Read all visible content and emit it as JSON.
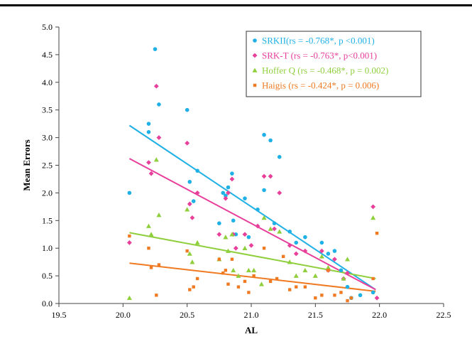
{
  "chart_data": {
    "type": "scatter",
    "title": "",
    "xlabel": "AL",
    "ylabel": "Mean Errors",
    "xlim": [
      19.5,
      22.5
    ],
    "ylim": [
      0.0,
      5.0
    ],
    "x_ticks": [
      "19.5",
      "20.0",
      "20.5",
      "21.0",
      "21.5",
      "22.0",
      "22.5"
    ],
    "y_ticks": [
      "0.0",
      "0.5",
      "1.0",
      "1.5",
      "2.0",
      "2.5",
      "3.0",
      "3.5",
      "4.0",
      "4.5",
      "5.0"
    ],
    "grid": false,
    "legend_position": "top-right",
    "series": [
      {
        "name": "SRKII(rs = -0.768*, p <0.001)",
        "color": "#1fb0e6",
        "marker": "circle",
        "trendline": [
          [
            20.05,
            3.22
          ],
          [
            21.97,
            0.25
          ]
        ],
        "points": [
          [
            20.05,
            2.0
          ],
          [
            20.2,
            3.25
          ],
          [
            20.2,
            3.1
          ],
          [
            20.25,
            4.6
          ],
          [
            20.28,
            3.6
          ],
          [
            20.5,
            3.5
          ],
          [
            20.52,
            2.2
          ],
          [
            20.55,
            1.85
          ],
          [
            20.58,
            2.4
          ],
          [
            20.75,
            1.45
          ],
          [
            20.78,
            2.0
          ],
          [
            20.8,
            1.95
          ],
          [
            20.82,
            2.1
          ],
          [
            20.85,
            2.35
          ],
          [
            20.86,
            1.5
          ],
          [
            20.88,
            1.25
          ],
          [
            20.95,
            1.9
          ],
          [
            20.98,
            1.2
          ],
          [
            21.05,
            1.7
          ],
          [
            21.1,
            3.05
          ],
          [
            21.1,
            2.05
          ],
          [
            21.15,
            2.95
          ],
          [
            21.18,
            1.45
          ],
          [
            21.22,
            2.65
          ],
          [
            21.3,
            1.3
          ],
          [
            21.35,
            1.1
          ],
          [
            21.42,
            1.2
          ],
          [
            21.55,
            1.1
          ],
          [
            21.6,
            0.9
          ],
          [
            21.65,
            0.95
          ],
          [
            21.7,
            0.6
          ],
          [
            21.75,
            0.3
          ],
          [
            21.78,
            0.1
          ],
          [
            21.85,
            0.15
          ],
          [
            21.95,
            0.2
          ]
        ]
      },
      {
        "name": "SRK-T (rs = -0.763*, p<0.001)",
        "color": "#e83f9b",
        "marker": "diamond",
        "trendline": [
          [
            20.05,
            2.62
          ],
          [
            21.97,
            0.25
          ]
        ],
        "points": [
          [
            20.05,
            1.1
          ],
          [
            20.2,
            2.55
          ],
          [
            20.22,
            2.35
          ],
          [
            20.26,
            3.93
          ],
          [
            20.28,
            3.0
          ],
          [
            20.5,
            2.9
          ],
          [
            20.52,
            1.8
          ],
          [
            20.54,
            1.55
          ],
          [
            20.58,
            2.0
          ],
          [
            20.75,
            1.25
          ],
          [
            20.8,
            1.9
          ],
          [
            20.82,
            2.0
          ],
          [
            20.85,
            2.25
          ],
          [
            20.86,
            1.25
          ],
          [
            20.88,
            1.0
          ],
          [
            20.95,
            1.25
          ],
          [
            21.0,
            1.05
          ],
          [
            21.05,
            1.4
          ],
          [
            21.1,
            2.3
          ],
          [
            21.15,
            2.3
          ],
          [
            21.18,
            1.35
          ],
          [
            21.22,
            2.0
          ],
          [
            21.3,
            1.05
          ],
          [
            21.35,
            0.9
          ],
          [
            21.42,
            0.95
          ],
          [
            21.55,
            0.95
          ],
          [
            21.6,
            0.6
          ],
          [
            21.65,
            0.8
          ],
          [
            21.72,
            0.45
          ],
          [
            21.75,
            0.55
          ],
          [
            21.95,
            1.75
          ],
          [
            21.98,
            0.1
          ]
        ]
      },
      {
        "name": "Hoffer Q (rs = -0.468*, p = 0.002)",
        "color": "#8fcf3c",
        "marker": "triangle",
        "trendline": [
          [
            20.05,
            1.28
          ],
          [
            21.97,
            0.45
          ]
        ],
        "points": [
          [
            20.05,
            0.1
          ],
          [
            20.2,
            1.4
          ],
          [
            20.22,
            1.25
          ],
          [
            20.26,
            2.6
          ],
          [
            20.28,
            1.6
          ],
          [
            20.5,
            1.7
          ],
          [
            20.52,
            0.9
          ],
          [
            20.54,
            0.75
          ],
          [
            20.58,
            1.1
          ],
          [
            20.75,
            0.8
          ],
          [
            20.8,
            1.2
          ],
          [
            20.82,
            0.95
          ],
          [
            20.85,
            1.25
          ],
          [
            20.86,
            0.6
          ],
          [
            20.9,
            0.5
          ],
          [
            20.95,
            1.0
          ],
          [
            20.98,
            0.6
          ],
          [
            21.02,
            0.6
          ],
          [
            21.08,
            0.35
          ],
          [
            21.1,
            1.55
          ],
          [
            21.15,
            1.35
          ],
          [
            21.22,
            1.3
          ],
          [
            21.3,
            0.75
          ],
          [
            21.35,
            0.5
          ],
          [
            21.42,
            0.6
          ],
          [
            21.5,
            0.5
          ],
          [
            21.55,
            0.85
          ],
          [
            21.6,
            0.65
          ],
          [
            21.72,
            0.45
          ],
          [
            21.75,
            0.8
          ],
          [
            21.95,
            1.55
          ]
        ]
      },
      {
        "name": "Haigis (rs = -0.424*, p = 0.006)",
        "color": "#f07a22",
        "marker": "square",
        "trendline": [
          [
            20.05,
            0.73
          ],
          [
            21.97,
            0.22
          ]
        ],
        "points": [
          [
            20.05,
            1.22
          ],
          [
            20.2,
            1.0
          ],
          [
            20.22,
            0.65
          ],
          [
            20.26,
            0.15
          ],
          [
            20.28,
            0.7
          ],
          [
            20.5,
            0.95
          ],
          [
            20.52,
            0.25
          ],
          [
            20.55,
            0.3
          ],
          [
            20.58,
            0.45
          ],
          [
            20.75,
            0.8
          ],
          [
            20.78,
            0.55
          ],
          [
            20.8,
            0.6
          ],
          [
            20.82,
            0.35
          ],
          [
            20.85,
            0.8
          ],
          [
            20.9,
            0.3
          ],
          [
            20.95,
            0.4
          ],
          [
            20.98,
            0.2
          ],
          [
            21.02,
            0.5
          ],
          [
            21.1,
            1.0
          ],
          [
            21.15,
            0.4
          ],
          [
            21.2,
            0.45
          ],
          [
            21.25,
            0.85
          ],
          [
            21.3,
            0.25
          ],
          [
            21.35,
            0.3
          ],
          [
            21.42,
            0.3
          ],
          [
            21.5,
            0.1
          ],
          [
            21.55,
            0.15
          ],
          [
            21.6,
            0.6
          ],
          [
            21.65,
            0.15
          ],
          [
            21.7,
            0.2
          ],
          [
            21.75,
            0.05
          ],
          [
            21.78,
            0.1
          ],
          [
            21.95,
            0.45
          ],
          [
            21.98,
            1.27
          ]
        ]
      }
    ]
  }
}
